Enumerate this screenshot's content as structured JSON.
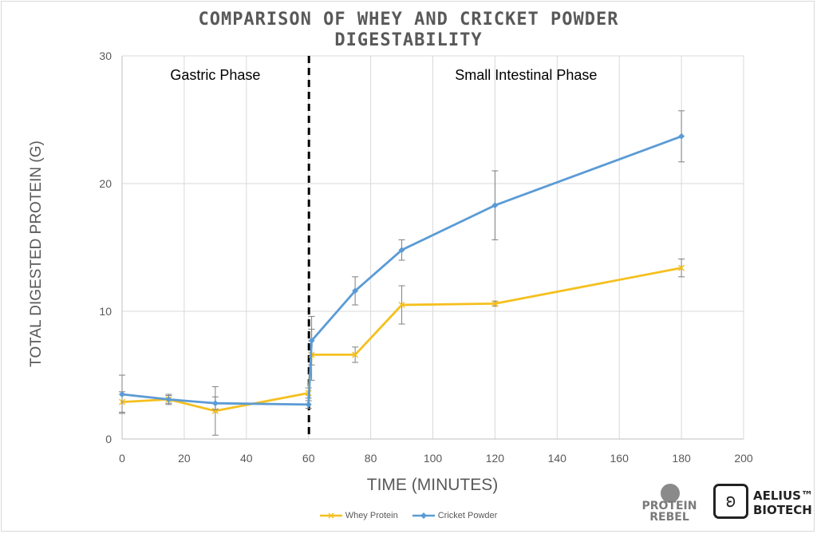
{
  "chart_data": {
    "type": "line",
    "title_line1": "COMPARISON OF WHEY AND CRICKET POWDER",
    "title_line2": "DIGESTABILITY",
    "xlabel": "TIME (MINUTES)",
    "ylabel": "TOTAL DIGESTED PROTEIN (G)",
    "xlim": [
      0,
      200
    ],
    "ylim": [
      0,
      30
    ],
    "xticks": [
      0,
      20,
      40,
      60,
      80,
      100,
      120,
      140,
      160,
      180,
      200
    ],
    "yticks": [
      0,
      10,
      20,
      30
    ],
    "grid": true,
    "legend_position": "bottom",
    "phase_divider_x": 60,
    "annotations": [
      {
        "text": "Gastric Phase",
        "x": 30,
        "y": 28.5
      },
      {
        "text": "Small Intestinal Phase",
        "x": 130,
        "y": 28.5
      }
    ],
    "series": [
      {
        "name": "Whey Protein",
        "color": "#f5c01e",
        "marker": "x",
        "points": [
          {
            "x": 0,
            "y": 2.9,
            "err": 0.8
          },
          {
            "x": 15,
            "y": 3.1,
            "err": 0.4
          },
          {
            "x": 30,
            "y": 2.2,
            "err": 1.9
          },
          {
            "x": 60,
            "y": 3.6,
            "err": 0.4
          },
          {
            "x": 61,
            "y": 6.6,
            "err": 2.0
          },
          {
            "x": 75,
            "y": 6.6,
            "err": 0.6
          },
          {
            "x": 90,
            "y": 10.5,
            "err": 1.5
          },
          {
            "x": 120,
            "y": 10.6,
            "err": 0.2
          },
          {
            "x": 180,
            "y": 13.4,
            "err": 0.7
          }
        ]
      },
      {
        "name": "Cricket Powder",
        "color": "#5b9bd5",
        "marker": "diamond",
        "points": [
          {
            "x": 0,
            "y": 3.5,
            "err": 1.5
          },
          {
            "x": 15,
            "y": 3.1,
            "err": 0.3
          },
          {
            "x": 30,
            "y": 2.8,
            "err": 0.5
          },
          {
            "x": 60,
            "y": 2.7,
            "err": 0.3
          },
          {
            "x": 61,
            "y": 7.7,
            "err": 1.9
          },
          {
            "x": 75,
            "y": 11.6,
            "err": 1.1
          },
          {
            "x": 90,
            "y": 14.8,
            "err": 0.8
          },
          {
            "x": 120,
            "y": 18.3,
            "err": 2.7
          },
          {
            "x": 180,
            "y": 23.7,
            "err": 2.0
          }
        ]
      }
    ]
  },
  "logos": {
    "protein_rebel": {
      "line1": "PROTEIN",
      "line2": "REBEL"
    },
    "aelius": {
      "line1": "AELIUS™",
      "line2": "BIOTECH"
    }
  }
}
